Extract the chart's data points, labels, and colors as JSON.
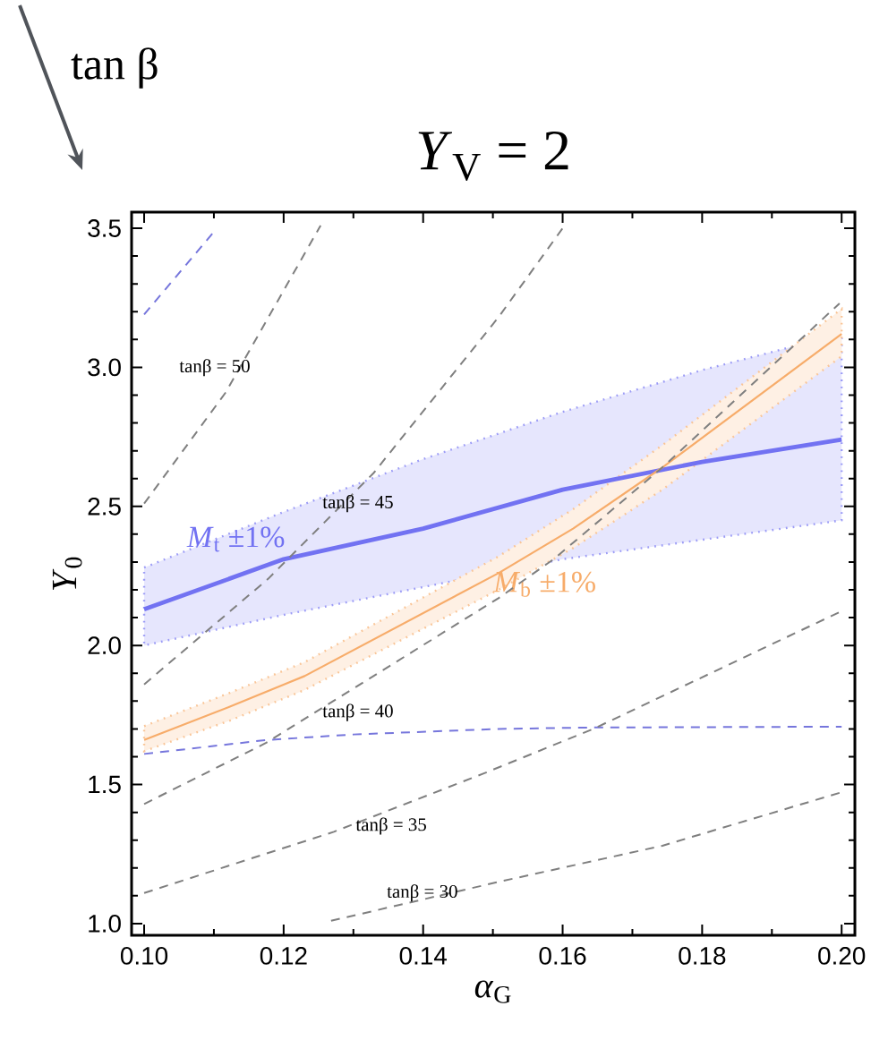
{
  "chart_data": {
    "type": "line",
    "title": "*Y*$_{V}$ = 2",
    "xlabel": "*α*$_{G}$",
    "ylabel": "*Y*$_{0}$",
    "xlim": [
      0.0982,
      0.2019
    ],
    "ylim": [
      0.958,
      3.558
    ],
    "xticks": [
      {
        "value": 0.1,
        "label": "0.10"
      },
      {
        "value": 0.11,
        "label": null
      },
      {
        "value": 0.12,
        "label": "0.12"
      },
      {
        "value": 0.13,
        "label": null
      },
      {
        "value": 0.14,
        "label": "0.14"
      },
      {
        "value": 0.15,
        "label": null
      },
      {
        "value": 0.16,
        "label": "0.16"
      },
      {
        "value": 0.17,
        "label": null
      },
      {
        "value": 0.18,
        "label": "0.18"
      },
      {
        "value": 0.19,
        "label": null
      },
      {
        "value": 0.2,
        "label": "0.20"
      }
    ],
    "yticks": [
      {
        "value": 1.0,
        "label": "1.0"
      },
      {
        "value": 1.1,
        "label": null
      },
      {
        "value": 1.2,
        "label": null
      },
      {
        "value": 1.3,
        "label": null
      },
      {
        "value": 1.4,
        "label": null
      },
      {
        "value": 1.5,
        "label": "1.5"
      },
      {
        "value": 1.6,
        "label": null
      },
      {
        "value": 1.7,
        "label": null
      },
      {
        "value": 1.8,
        "label": null
      },
      {
        "value": 1.9,
        "label": null
      },
      {
        "value": 2.0,
        "label": "2.0"
      },
      {
        "value": 2.1,
        "label": null
      },
      {
        "value": 2.2,
        "label": null
      },
      {
        "value": 2.3,
        "label": null
      },
      {
        "value": 2.4,
        "label": null
      },
      {
        "value": 2.5,
        "label": "2.5"
      },
      {
        "value": 2.6,
        "label": null
      },
      {
        "value": 2.7,
        "label": null
      },
      {
        "value": 2.8,
        "label": null
      },
      {
        "value": 2.9,
        "label": null
      },
      {
        "value": 3.0,
        "label": "3.0"
      },
      {
        "value": 3.1,
        "label": null
      },
      {
        "value": 3.2,
        "label": null
      },
      {
        "value": 3.3,
        "label": null
      },
      {
        "value": 3.4,
        "label": null
      },
      {
        "value": 3.5,
        "label": "3.5"
      }
    ],
    "grid": false,
    "series": [
      {
        "name": "*M*$_{t}$ ±1%",
        "color": "#7272f2",
        "line_style": "solid",
        "x": [
          0.1,
          0.12,
          0.14,
          0.16,
          0.18,
          0.2
        ],
        "values": [
          2.13,
          2.31,
          2.42,
          2.56,
          2.66,
          2.74
        ],
        "lower": [
          2.0,
          2.11,
          2.21,
          2.31,
          2.38,
          2.45
        ],
        "upper": [
          2.28,
          2.48,
          2.67,
          2.84,
          2.99,
          3.12
        ]
      },
      {
        "name": "*M*$_{b}$ ±1%",
        "color": "#f7ac6a",
        "line_style": "solid",
        "x": [
          0.1,
          0.1123,
          0.123,
          0.1508,
          0.1615,
          0.1743,
          0.2
        ],
        "values": [
          1.66,
          1.78,
          1.89,
          2.26,
          2.42,
          2.64,
          3.12
        ],
        "lower": [
          1.62,
          1.73,
          1.84,
          2.2,
          2.35,
          2.56,
          3.04
        ],
        "upper": [
          1.71,
          1.83,
          1.94,
          2.32,
          2.49,
          2.72,
          3.21
        ]
      },
      {
        "color": "#7676dc",
        "line_style": "dashed",
        "x": [
          0.1,
          0.1101
        ],
        "values": [
          3.19,
          3.49
        ]
      },
      {
        "color": "#7676dc",
        "line_style": "dashed",
        "x": [
          0.1,
          0.1175,
          0.13,
          0.1508,
          0.164,
          0.2
        ],
        "values": [
          1.61,
          1.66,
          1.68,
          1.7,
          1.705,
          1.708
        ]
      },
      {
        "color": "#7f7f7f",
        "line_style": "dashed",
        "x": [
          0.1,
          0.1117,
          0.1253
        ],
        "values": [
          2.51,
          2.91,
          3.51
        ]
      },
      {
        "color": "#7f7f7f",
        "line_style": "dashed",
        "x": [
          0.1,
          0.1178,
          0.1329,
          0.1508,
          0.16
        ],
        "values": [
          1.86,
          2.24,
          2.62,
          3.18,
          3.5
        ]
      },
      {
        "color": "#7f7f7f",
        "line_style": "dashed",
        "x": [
          0.1,
          0.1175,
          0.1508,
          0.1587,
          0.1743,
          0.1997
        ],
        "values": [
          1.43,
          1.65,
          2.17,
          2.31,
          2.64,
          3.23
        ]
      },
      {
        "color": "#7f7f7f",
        "line_style": "dashed",
        "x": [
          0.1,
          0.1272,
          0.1487,
          0.1644,
          0.1997
        ],
        "values": [
          1.11,
          1.33,
          1.54,
          1.7,
          2.12
        ]
      },
      {
        "color": "#7f7f7f",
        "line_style": "dashed",
        "x": [
          0.1268,
          0.1508,
          0.1743,
          0.1997
        ],
        "values": [
          1.01,
          1.15,
          1.28,
          1.47
        ]
      }
    ],
    "annotations": [
      "tan β",
      "tanβ = 50",
      "tanβ = 45",
      "tanβ = 40",
      "tanβ = 35",
      "tanβ = 30"
    ]
  }
}
